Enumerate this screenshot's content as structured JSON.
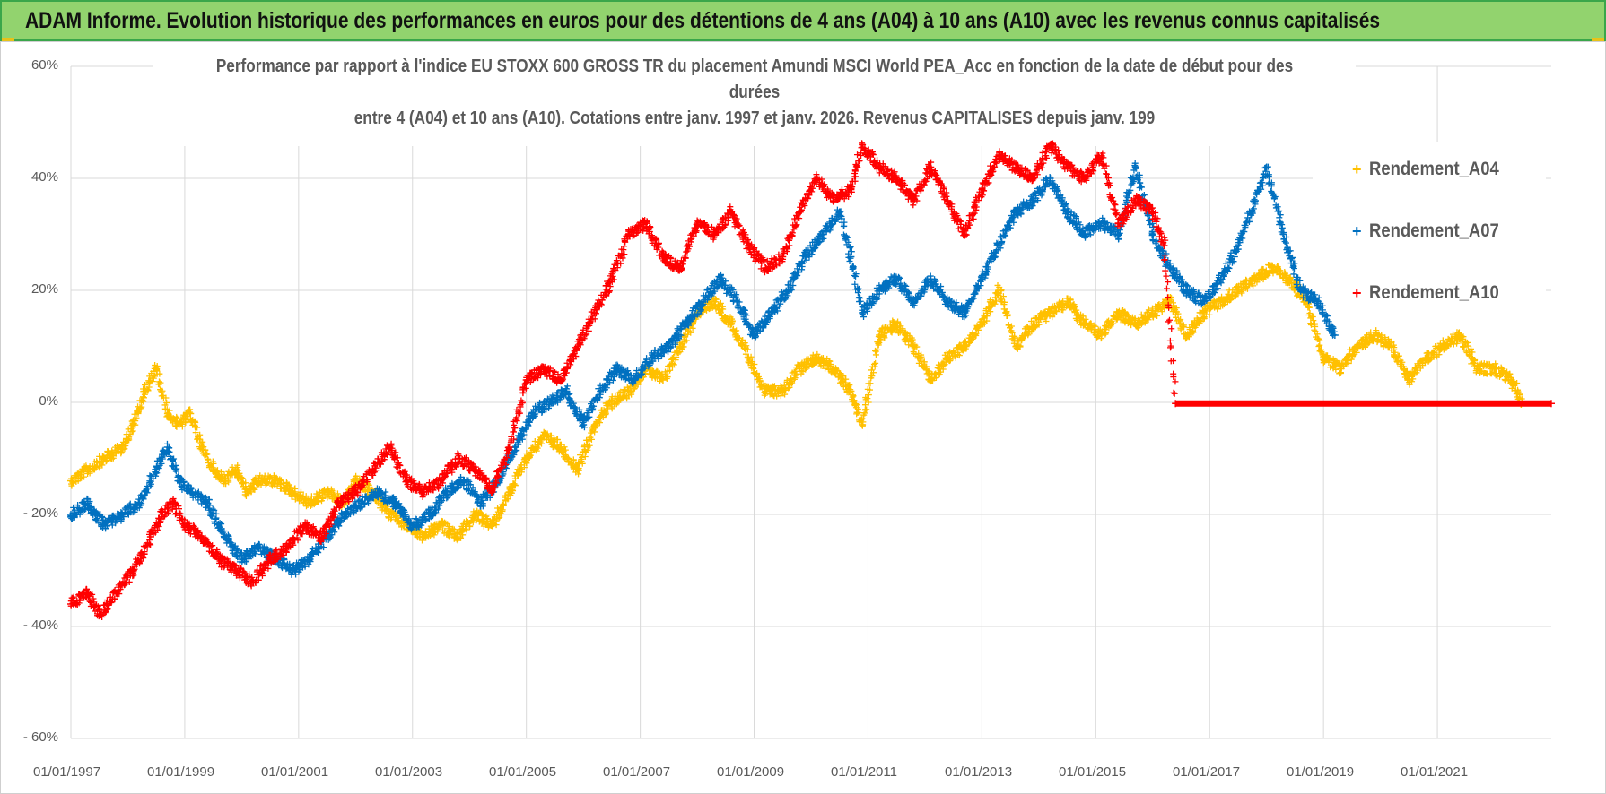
{
  "banner": {
    "title": "ADAM Informe. Evolution historique des performances en euros pour des détentions de 4 ans (A04) à 10 ans (A10) avec les revenus connus capitalisés"
  },
  "chart_data": {
    "type": "scatter",
    "title_lines": [
      "Performance par rapport à l'indice EU STOXX 600 GROSS TR  du placement Amundi MSCI World PEA_Acc en fonction de la date de début pour des",
      "durées",
      "entre 4 (A04) et 10 ans (A10).  Cotations entre janv. 1997 et janv. 2026. Revenus CAPITALISES depuis janv. 199"
    ],
    "y_ticks": [
      "60%",
      "40%",
      "20%",
      "0%",
      "- 20%",
      "- 40%",
      "- 60%"
    ],
    "x_ticks": [
      "01/01/1997",
      "01/01/1999",
      "01/01/2001",
      "01/01/2003",
      "01/01/2005",
      "01/01/2007",
      "01/01/2009",
      "01/01/2011",
      "01/01/2013",
      "01/01/2015",
      "01/01/2017",
      "01/01/2019",
      "01/01/2021"
    ],
    "ylim": [
      -60,
      60
    ],
    "xlim": [
      1997.0,
      2023.0
    ],
    "grid": true,
    "legend_position": "top-right",
    "marker": "+",
    "series": [
      {
        "name": "Rendement_A04",
        "color": "#ffc000",
        "points": [
          [
            1997.0,
            -14
          ],
          [
            1997.3,
            -12
          ],
          [
            1997.6,
            -10
          ],
          [
            1997.9,
            -8
          ],
          [
            1998.1,
            -4
          ],
          [
            1998.3,
            2
          ],
          [
            1998.5,
            6
          ],
          [
            1998.7,
            -2
          ],
          [
            1998.9,
            -4
          ],
          [
            1999.1,
            -2
          ],
          [
            1999.3,
            -8
          ],
          [
            1999.5,
            -12
          ],
          [
            1999.7,
            -14
          ],
          [
            1999.9,
            -12
          ],
          [
            2000.1,
            -16
          ],
          [
            2000.3,
            -14
          ],
          [
            2000.6,
            -14
          ],
          [
            2000.9,
            -16
          ],
          [
            2001.2,
            -18
          ],
          [
            2001.5,
            -16
          ],
          [
            2001.8,
            -18
          ],
          [
            2002.0,
            -14
          ],
          [
            2002.3,
            -16
          ],
          [
            2002.6,
            -20
          ],
          [
            2002.9,
            -22
          ],
          [
            2003.2,
            -24
          ],
          [
            2003.5,
            -22
          ],
          [
            2003.8,
            -24
          ],
          [
            2004.1,
            -20
          ],
          [
            2004.4,
            -22
          ],
          [
            2004.7,
            -16
          ],
          [
            2005.0,
            -10
          ],
          [
            2005.3,
            -6
          ],
          [
            2005.6,
            -8
          ],
          [
            2005.9,
            -12
          ],
          [
            2006.2,
            -4
          ],
          [
            2006.5,
            0
          ],
          [
            2006.8,
            2
          ],
          [
            2007.1,
            6
          ],
          [
            2007.4,
            4
          ],
          [
            2007.7,
            10
          ],
          [
            2008.0,
            16
          ],
          [
            2008.3,
            18
          ],
          [
            2008.6,
            14
          ],
          [
            2008.9,
            8
          ],
          [
            2009.2,
            2
          ],
          [
            2009.5,
            2
          ],
          [
            2009.8,
            6
          ],
          [
            2010.1,
            8
          ],
          [
            2010.4,
            6
          ],
          [
            2010.7,
            2
          ],
          [
            2010.9,
            -4
          ],
          [
            2011.2,
            12
          ],
          [
            2011.5,
            14
          ],
          [
            2011.8,
            10
          ],
          [
            2012.1,
            4
          ],
          [
            2012.4,
            8
          ],
          [
            2012.7,
            10
          ],
          [
            2013.0,
            14
          ],
          [
            2013.3,
            20
          ],
          [
            2013.6,
            10
          ],
          [
            2013.9,
            14
          ],
          [
            2014.2,
            16
          ],
          [
            2014.5,
            18
          ],
          [
            2014.8,
            14
          ],
          [
            2015.1,
            12
          ],
          [
            2015.4,
            16
          ],
          [
            2015.7,
            14
          ],
          [
            2016.0,
            16
          ],
          [
            2016.3,
            18
          ],
          [
            2016.6,
            12
          ],
          [
            2016.9,
            16
          ],
          [
            2017.2,
            18
          ],
          [
            2017.5,
            20
          ],
          [
            2017.8,
            22
          ],
          [
            2018.1,
            24
          ],
          [
            2018.4,
            22
          ],
          [
            2018.7,
            18
          ],
          [
            2019.0,
            8
          ],
          [
            2019.3,
            6
          ],
          [
            2019.6,
            10
          ],
          [
            2019.9,
            12
          ],
          [
            2020.2,
            10
          ],
          [
            2020.5,
            4
          ],
          [
            2020.8,
            8
          ],
          [
            2021.1,
            10
          ],
          [
            2021.4,
            12
          ],
          [
            2021.7,
            6
          ],
          [
            2022.0,
            6
          ],
          [
            2022.3,
            4
          ],
          [
            2022.5,
            0
          ]
        ]
      },
      {
        "name": "Rendement_A07",
        "color": "#0070c0",
        "points": [
          [
            1997.0,
            -20
          ],
          [
            1997.3,
            -18
          ],
          [
            1997.6,
            -22
          ],
          [
            1997.9,
            -20
          ],
          [
            1998.2,
            -18
          ],
          [
            1998.5,
            -12
          ],
          [
            1998.7,
            -8
          ],
          [
            1998.9,
            -14
          ],
          [
            1999.1,
            -16
          ],
          [
            1999.4,
            -18
          ],
          [
            1999.7,
            -24
          ],
          [
            2000.0,
            -28
          ],
          [
            2000.3,
            -26
          ],
          [
            2000.6,
            -28
          ],
          [
            2000.9,
            -30
          ],
          [
            2001.2,
            -28
          ],
          [
            2001.5,
            -24
          ],
          [
            2001.8,
            -20
          ],
          [
            2002.1,
            -18
          ],
          [
            2002.4,
            -16
          ],
          [
            2002.7,
            -18
          ],
          [
            2003.0,
            -22
          ],
          [
            2003.3,
            -20
          ],
          [
            2003.6,
            -16
          ],
          [
            2003.9,
            -14
          ],
          [
            2004.2,
            -18
          ],
          [
            2004.5,
            -14
          ],
          [
            2004.8,
            -8
          ],
          [
            2005.1,
            -2
          ],
          [
            2005.4,
            0
          ],
          [
            2005.7,
            2
          ],
          [
            2006.0,
            -4
          ],
          [
            2006.3,
            2
          ],
          [
            2006.6,
            6
          ],
          [
            2006.9,
            4
          ],
          [
            2007.2,
            8
          ],
          [
            2007.5,
            10
          ],
          [
            2007.8,
            14
          ],
          [
            2008.1,
            18
          ],
          [
            2008.4,
            22
          ],
          [
            2008.7,
            18
          ],
          [
            2009.0,
            12
          ],
          [
            2009.3,
            16
          ],
          [
            2009.6,
            20
          ],
          [
            2009.9,
            26
          ],
          [
            2010.2,
            30
          ],
          [
            2010.5,
            34
          ],
          [
            2010.7,
            26
          ],
          [
            2010.9,
            16
          ],
          [
            2011.2,
            20
          ],
          [
            2011.5,
            22
          ],
          [
            2011.8,
            18
          ],
          [
            2012.1,
            22
          ],
          [
            2012.4,
            18
          ],
          [
            2012.7,
            16
          ],
          [
            2013.0,
            22
          ],
          [
            2013.3,
            28
          ],
          [
            2013.6,
            34
          ],
          [
            2013.9,
            36
          ],
          [
            2014.2,
            40
          ],
          [
            2014.5,
            34
          ],
          [
            2014.8,
            30
          ],
          [
            2015.1,
            32
          ],
          [
            2015.4,
            30
          ],
          [
            2015.7,
            42
          ],
          [
            2016.0,
            30
          ],
          [
            2016.3,
            24
          ],
          [
            2016.6,
            20
          ],
          [
            2016.9,
            18
          ],
          [
            2017.2,
            22
          ],
          [
            2017.5,
            28
          ],
          [
            2017.8,
            36
          ],
          [
            2018.0,
            42
          ],
          [
            2018.3,
            30
          ],
          [
            2018.6,
            20
          ],
          [
            2018.9,
            18
          ],
          [
            2019.1,
            14
          ],
          [
            2019.2,
            12
          ]
        ]
      },
      {
        "name": "Rendement_A10",
        "color": "#ff0000",
        "points": [
          [
            1997.0,
            -36
          ],
          [
            1997.3,
            -34
          ],
          [
            1997.5,
            -38
          ],
          [
            1997.8,
            -34
          ],
          [
            1998.1,
            -30
          ],
          [
            1998.4,
            -24
          ],
          [
            1998.6,
            -20
          ],
          [
            1998.8,
            -18
          ],
          [
            1999.0,
            -22
          ],
          [
            1999.3,
            -24
          ],
          [
            1999.6,
            -28
          ],
          [
            1999.9,
            -30
          ],
          [
            2000.2,
            -32
          ],
          [
            2000.5,
            -28
          ],
          [
            2000.8,
            -26
          ],
          [
            2001.1,
            -22
          ],
          [
            2001.4,
            -24
          ],
          [
            2001.7,
            -18
          ],
          [
            2002.0,
            -16
          ],
          [
            2002.3,
            -12
          ],
          [
            2002.6,
            -8
          ],
          [
            2002.9,
            -14
          ],
          [
            2003.2,
            -16
          ],
          [
            2003.5,
            -14
          ],
          [
            2003.8,
            -10
          ],
          [
            2004.1,
            -12
          ],
          [
            2004.4,
            -16
          ],
          [
            2004.7,
            -8
          ],
          [
            2005.0,
            4
          ],
          [
            2005.3,
            6
          ],
          [
            2005.6,
            4
          ],
          [
            2005.9,
            10
          ],
          [
            2006.2,
            16
          ],
          [
            2006.5,
            22
          ],
          [
            2006.8,
            30
          ],
          [
            2007.1,
            32
          ],
          [
            2007.4,
            26
          ],
          [
            2007.7,
            24
          ],
          [
            2008.0,
            32
          ],
          [
            2008.3,
            30
          ],
          [
            2008.6,
            34
          ],
          [
            2008.9,
            28
          ],
          [
            2009.2,
            24
          ],
          [
            2009.5,
            26
          ],
          [
            2009.8,
            34
          ],
          [
            2010.1,
            40
          ],
          [
            2010.4,
            36
          ],
          [
            2010.7,
            38
          ],
          [
            2010.9,
            46
          ],
          [
            2011.2,
            42
          ],
          [
            2011.5,
            40
          ],
          [
            2011.8,
            36
          ],
          [
            2012.1,
            42
          ],
          [
            2012.4,
            36
          ],
          [
            2012.7,
            30
          ],
          [
            2013.0,
            38
          ],
          [
            2013.3,
            44
          ],
          [
            2013.6,
            42
          ],
          [
            2013.9,
            40
          ],
          [
            2014.2,
            46
          ],
          [
            2014.5,
            42
          ],
          [
            2014.8,
            40
          ],
          [
            2015.1,
            44
          ],
          [
            2015.4,
            32
          ],
          [
            2015.7,
            36
          ],
          [
            2016.0,
            34
          ],
          [
            2016.2,
            28
          ],
          [
            2016.4,
            -0.2
          ],
          [
            2023.0,
            -0.2
          ]
        ]
      }
    ]
  }
}
